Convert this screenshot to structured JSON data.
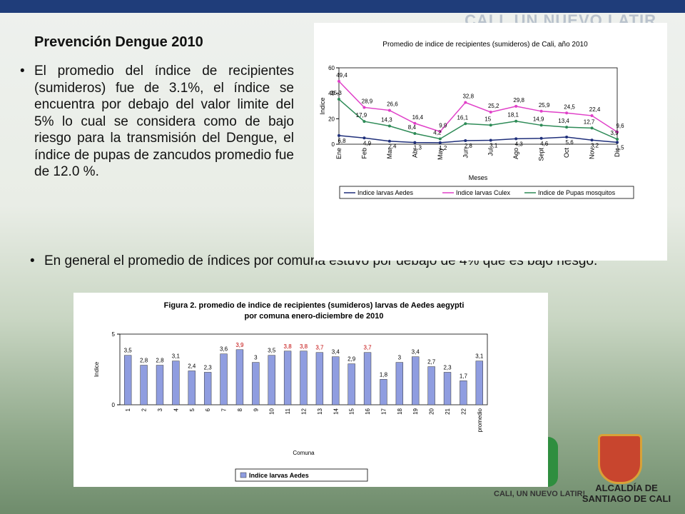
{
  "slide": {
    "banner": "CALI, UN NUEVO LATIR",
    "title": "Prevención Dengue 2010",
    "bullets": [
      "El promedio del índice de recipientes (sumideros) fue de 3.1%, el índice se encuentra por debajo del valor limite del 5% lo cual se considera como de bajo riesgo para la transmisión del Dengue, el índice de pupas de zancudos promedio fue de 12.0 %.",
      "En general el promedio de índices por comuna estuvo por debajo de 4% que es bajo riesgo."
    ],
    "logo_left": "CALI, UN NUEVO LATIR!",
    "logo_right": "ALCALDÍA DE SANTIAGO DE CALI"
  },
  "chart_data": [
    {
      "type": "line",
      "title": "Promedio de indice de recipientes (sumideros) de Cali, año 2010",
      "xlabel": "Meses",
      "ylabel": "Indice",
      "categories": [
        "Ene",
        "Feb",
        "Mar",
        "Abr",
        "May",
        "Jun",
        "Jul",
        "Ago",
        "Sept",
        "Oct",
        "Nov",
        "Dic"
      ],
      "ylim": [
        0,
        60
      ],
      "yticks": [
        0,
        20,
        40,
        60
      ],
      "legend": "bottom",
      "series": [
        {
          "name": "Indice larvas Aedes",
          "color": "#1f2f7a",
          "values": [
            6.8,
            4.9,
            2.4,
            1.3,
            1.2,
            2.8,
            3.1,
            4.3,
            4.6,
            5.6,
            3.2,
            1.5
          ],
          "value_labels": [
            "6,8",
            "4,9",
            "2,4",
            "1,3",
            "1,2",
            "2,8",
            "3,1",
            "4,3",
            "4,6",
            "5,6",
            "3,2",
            "1,5"
          ]
        },
        {
          "name": "Indice larvas Culex",
          "color": "#e040c8",
          "values": [
            49.4,
            28.9,
            26.6,
            16.4,
            9.9,
            32.8,
            25.2,
            29.8,
            25.9,
            24.5,
            22.4,
            9.6
          ],
          "value_labels": [
            "49,4",
            "28,9",
            "26,6",
            "16,4",
            "9,9",
            "32,8",
            "25,2",
            "29,8",
            "25,9",
            "24,5",
            "22,4",
            "9,6"
          ]
        },
        {
          "name": "Indice de Pupas mosquitos",
          "color": "#2e8b57",
          "values": [
            35.3,
            17.9,
            14.3,
            8.4,
            4.2,
            16.1,
            15,
            18.1,
            14.9,
            13.4,
            12.7,
            3.9
          ],
          "value_labels": [
            "35,3",
            "17,9",
            "14,3",
            "8,4",
            "4,2",
            "16,1",
            "15",
            "18,1",
            "14,9",
            "13,4",
            "12,7",
            "3,9"
          ]
        }
      ]
    },
    {
      "type": "bar",
      "title": "Figura 2. promedio de indice de recipientes (sumideros) larvas de Aedes aegypti",
      "subtitle": "por comuna enero-diciembre de 2010",
      "xlabel": "Comuna",
      "ylabel": "Indice",
      "categories": [
        "1",
        "2",
        "3",
        "4",
        "5",
        "6",
        "7",
        "8",
        "9",
        "10",
        "11",
        "12",
        "13",
        "14",
        "15",
        "16",
        "17",
        "18",
        "19",
        "20",
        "21",
        "22",
        "promedio"
      ],
      "ylim": [
        0,
        5
      ],
      "yticks": [
        0,
        5
      ],
      "legend": "bottom",
      "series": [
        {
          "name": "Indice larvas Aedes",
          "color": "#8f9de0",
          "values": [
            3.5,
            2.8,
            2.8,
            3.1,
            2.4,
            2.3,
            3.6,
            3.9,
            3,
            3.5,
            3.8,
            3.8,
            3.7,
            3.4,
            2.9,
            3.7,
            1.8,
            3,
            3.4,
            2.7,
            2.3,
            1.7,
            3.1
          ],
          "value_labels": [
            "3,5",
            "2,8",
            "2,8",
            "3,1",
            "2,4",
            "2,3",
            "3,6",
            "3,9",
            "3",
            "3,5",
            "3,8",
            "3,8",
            "3,7",
            "3,4",
            "2,9",
            "3,7",
            "1,8",
            "3",
            "3,4",
            "2,7",
            "2,3",
            "1,7",
            "3,1"
          ],
          "label_colors": [
            "#000",
            "#000",
            "#000",
            "#000",
            "#000",
            "#000",
            "#000",
            "#c00000",
            "#000",
            "#000",
            "#c00000",
            "#c00000",
            "#c00000",
            "#000",
            "#000",
            "#c00000",
            "#000",
            "#000",
            "#000",
            "#000",
            "#000",
            "#000",
            "#000"
          ]
        }
      ]
    }
  ]
}
